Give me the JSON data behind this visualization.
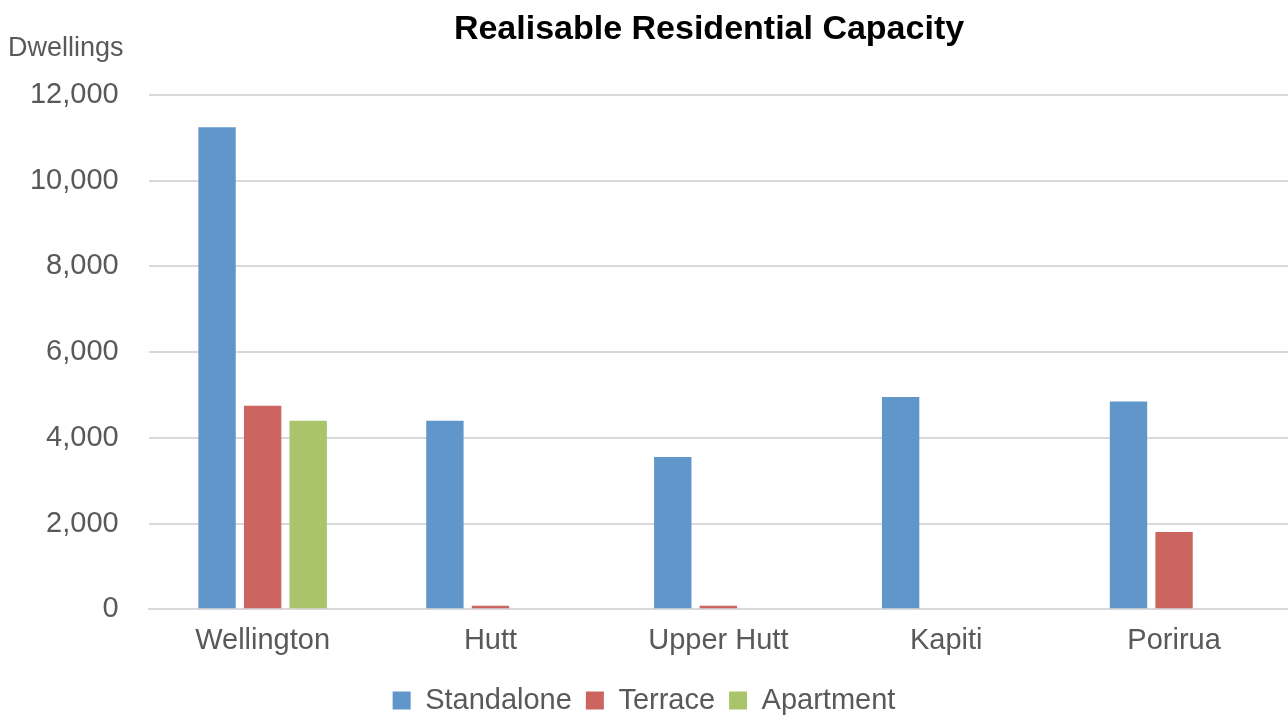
{
  "chart_data": {
    "type": "bar",
    "title": "Realisable Residential Capacity",
    "ylabel": "Dwellings",
    "categories": [
      "Wellington",
      "Hutt",
      "Upper Hutt",
      "Kapiti",
      "Porirua"
    ],
    "series": [
      {
        "name": "Standalone",
        "color": "#6096c9",
        "values": [
          11250,
          4400,
          3550,
          4950,
          4850
        ]
      },
      {
        "name": "Terrace",
        "color": "#cc6560",
        "values": [
          4750,
          80,
          80,
          0,
          1800
        ]
      },
      {
        "name": "Apartment",
        "color": "#a9c46a",
        "values": [
          4400,
          0,
          0,
          0,
          0
        ]
      }
    ],
    "ylim": [
      0,
      12000
    ],
    "yticks": [
      0,
      {
        "value": 2000,
        "label": "2,000"
      },
      {
        "value": 4000,
        "label": "4,000"
      },
      {
        "value": 6000,
        "label": "6,000"
      },
      {
        "value": 8000,
        "label": "8,000"
      },
      {
        "value": 10000,
        "label": "10,000"
      },
      {
        "value": 12000,
        "label": "12,000"
      }
    ],
    "grid": "y",
    "legend": "bottom"
  }
}
